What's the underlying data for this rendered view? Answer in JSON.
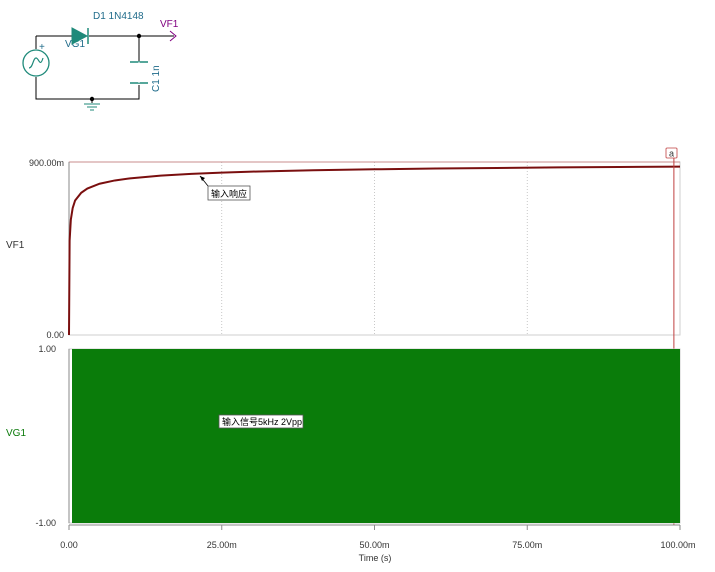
{
  "schematic": {
    "diode_label": "D1 1N4148",
    "output_label": "VF1",
    "source_label": "VG1",
    "cap_label": "C1 1n",
    "source_plus": "+",
    "colors": {
      "wire": "#000000",
      "component": "#1f8a7a",
      "output": "#800080",
      "text": "#1f6b8a"
    }
  },
  "chart_data": [
    {
      "type": "line",
      "ylabel": "VF1",
      "xlabel": "",
      "xlim": [
        0,
        100
      ],
      "ylim": [
        0,
        0.9
      ],
      "ytick_labels": [
        "900.00m",
        "0.00"
      ],
      "series": [
        {
          "color": "#7a0f0f",
          "x": [
            0,
            0.1,
            0.3,
            0.6,
            1,
            2,
            3,
            5,
            7.5,
            10,
            15,
            20,
            25,
            30,
            40,
            50,
            60,
            70,
            80,
            90,
            100
          ],
          "y": [
            0,
            0.49,
            0.6,
            0.66,
            0.7,
            0.74,
            0.762,
            0.787,
            0.804,
            0.815,
            0.829,
            0.838,
            0.845,
            0.85,
            0.857,
            0.862,
            0.866,
            0.869,
            0.872,
            0.874,
            0.876
          ]
        }
      ],
      "annotation": {
        "text": "输入响应",
        "x": 22.5,
        "y": 0.84
      },
      "cursor": {
        "label": "a",
        "x": 99,
        "color": "#c04040"
      },
      "grid": "vertical-dotted"
    },
    {
      "type": "area",
      "ylabel": "VG1",
      "xlabel": "Time (s)",
      "xlim": [
        0,
        100
      ],
      "ylim": [
        -1,
        1
      ],
      "x_unit": "ms",
      "x_ticks": [
        0,
        25,
        50,
        75,
        100
      ],
      "x_tick_labels": [
        "0.00",
        "25.00m",
        "50.00m",
        "75.00m",
        "100.00m"
      ],
      "ytick_labels": [
        "1.00",
        "-1.00"
      ],
      "series": [
        {
          "color": "#0a7a0a",
          "waveform": "sine",
          "frequency_hz": 5000,
          "amplitude": 1
        }
      ],
      "annotation": {
        "text": "输入信号5kHz 2Vpp"
      }
    }
  ]
}
